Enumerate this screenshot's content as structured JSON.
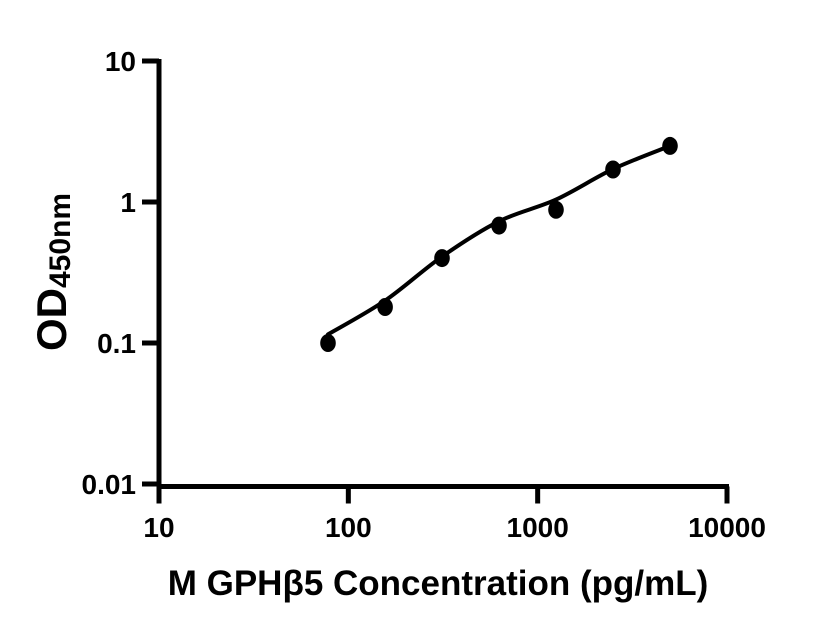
{
  "figure": {
    "background": "#ffffff",
    "ink_color": "#000000"
  },
  "chart_data": {
    "type": "scatter",
    "title": "",
    "xlabel": "M GPHβ5 Concentration (pg/mL)",
    "ylabel_main": "OD",
    "ylabel_sub": "450nm",
    "x_scale": "log",
    "y_scale": "log",
    "xlim": [
      10,
      10000
    ],
    "ylim": [
      0.01,
      10
    ],
    "grid": false,
    "legend": "none",
    "x_tick_values": [
      10,
      100,
      1000,
      10000
    ],
    "x_tick_labels": [
      "10",
      "100",
      "1000",
      "10000"
    ],
    "y_tick_values": [
      10,
      1,
      0.1,
      0.01
    ],
    "y_tick_labels": [
      "10",
      "1",
      "0.1",
      "0.01"
    ],
    "series": [
      {
        "name": "standard-points",
        "type": "scatter",
        "marker": "filled-circle",
        "color": "#000000",
        "x": [
          78.1,
          156.3,
          312.5,
          625,
          1250,
          2500,
          5000
        ],
        "od": [
          0.1,
          0.18,
          0.4,
          0.68,
          0.88,
          1.7,
          2.5
        ]
      },
      {
        "name": "fit-curve",
        "type": "line",
        "color": "#000000",
        "x": [
          78.1,
          156.3,
          312.5,
          625,
          1250,
          2500,
          5000
        ],
        "od": [
          0.115,
          0.2,
          0.41,
          0.73,
          1.04,
          1.71,
          2.5
        ]
      }
    ]
  }
}
